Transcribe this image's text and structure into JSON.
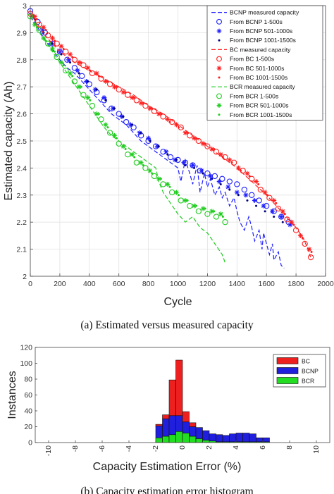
{
  "chart_data": [
    {
      "type": "line",
      "caption": "(a) Estimated versus measured capacity",
      "xlabel": "Cycle",
      "ylabel": "Estimated capacity (Ah)",
      "xlim": [
        0,
        2000
      ],
      "ylim": [
        2,
        3
      ],
      "xticks": [
        0,
        200,
        400,
        600,
        800,
        1000,
        1200,
        1400,
        1600,
        1800,
        2000
      ],
      "yticks": [
        2,
        2.1,
        2.2,
        2.3,
        2.4,
        2.5,
        2.6,
        2.7,
        2.8,
        2.9,
        3
      ],
      "grid": true,
      "legend_position": "top-right",
      "series": [
        {
          "name": "BCNP measured capacity",
          "kind": "line",
          "style": "dashed",
          "color": "#1f1fff",
          "x": [
            0,
            40,
            80,
            120,
            160,
            200,
            250,
            300,
            350,
            400,
            450,
            500,
            550,
            600,
            650,
            700,
            750,
            800,
            850,
            900,
            950,
            1000,
            1020,
            1050,
            1080,
            1100,
            1130,
            1150,
            1180,
            1200,
            1220,
            1250,
            1280,
            1300,
            1320,
            1350,
            1380,
            1400,
            1420,
            1450,
            1480,
            1500,
            1520,
            1550,
            1570,
            1580,
            1600,
            1620,
            1640,
            1650,
            1680,
            1700,
            1720
          ],
          "y": [
            2.96,
            2.93,
            2.89,
            2.86,
            2.83,
            2.8,
            2.77,
            2.75,
            2.72,
            2.69,
            2.66,
            2.63,
            2.6,
            2.58,
            2.56,
            2.53,
            2.5,
            2.48,
            2.46,
            2.44,
            2.42,
            2.4,
            2.35,
            2.43,
            2.38,
            2.34,
            2.41,
            2.31,
            2.38,
            2.33,
            2.36,
            2.3,
            2.33,
            2.29,
            2.31,
            2.26,
            2.29,
            2.24,
            2.2,
            2.17,
            2.22,
            2.18,
            2.13,
            2.17,
            2.1,
            2.16,
            2.12,
            2.08,
            2.12,
            2.06,
            2.09,
            2.04,
            2.03
          ]
        },
        {
          "name": "From BCNP 1-500s",
          "kind": "marker",
          "marker": "circle",
          "color": "#1f1fff",
          "x": [
            0,
            50,
            100,
            150,
            200,
            250,
            300,
            350,
            400,
            450,
            500,
            550,
            600,
            650,
            700,
            750,
            800,
            850,
            900,
            950,
            1000,
            1050,
            1100,
            1150,
            1200,
            1250,
            1300,
            1350,
            1400,
            1450,
            1500,
            1550,
            1600,
            1650,
            1700,
            1750
          ],
          "y": [
            2.98,
            2.94,
            2.9,
            2.86,
            2.83,
            2.8,
            2.77,
            2.74,
            2.71,
            2.68,
            2.65,
            2.62,
            2.6,
            2.57,
            2.55,
            2.52,
            2.5,
            2.48,
            2.46,
            2.44,
            2.43,
            2.42,
            2.41,
            2.39,
            2.38,
            2.37,
            2.36,
            2.35,
            2.34,
            2.32,
            2.3,
            2.28,
            2.26,
            2.24,
            2.22,
            2.2
          ]
        },
        {
          "name": "From BCNP 501-1000s",
          "kind": "marker",
          "marker": "asterisk",
          "color": "#1f1fff",
          "x": [
            20,
            80,
            140,
            200,
            260,
            320,
            380,
            440,
            500,
            560,
            620,
            680,
            740,
            800,
            860,
            920,
            980,
            1040,
            1100,
            1160,
            1220,
            1280,
            1340,
            1400,
            1460,
            1520,
            1580,
            1640,
            1700,
            1760
          ],
          "y": [
            2.96,
            2.91,
            2.86,
            2.83,
            2.8,
            2.76,
            2.72,
            2.69,
            2.66,
            2.62,
            2.59,
            2.56,
            2.53,
            2.51,
            2.48,
            2.46,
            2.43,
            2.42,
            2.41,
            2.39,
            2.37,
            2.35,
            2.33,
            2.31,
            2.3,
            2.28,
            2.26,
            2.24,
            2.22,
            2.19
          ]
        },
        {
          "name": "From BCNP 1001-1500s",
          "kind": "marker",
          "marker": "dot",
          "color": "#00007a",
          "x": [
            30,
            90,
            150,
            210,
            270,
            330,
            390,
            450,
            510,
            570,
            630,
            690,
            750,
            810,
            870,
            930,
            990,
            1050,
            1110,
            1170,
            1230,
            1290,
            1350,
            1410,
            1470,
            1530,
            1590,
            1650,
            1710
          ],
          "y": [
            2.95,
            2.9,
            2.86,
            2.82,
            2.79,
            2.75,
            2.72,
            2.69,
            2.65,
            2.62,
            2.59,
            2.56,
            2.53,
            2.5,
            2.48,
            2.45,
            2.43,
            2.41,
            2.4,
            2.38,
            2.36,
            2.34,
            2.32,
            2.3,
            2.28,
            2.26,
            2.24,
            2.22,
            2.2
          ]
        },
        {
          "name": "BC measured capacity",
          "kind": "line",
          "style": "dashed",
          "color": "#ff1f1f",
          "x": [
            0,
            50,
            100,
            150,
            200,
            300,
            400,
            500,
            600,
            700,
            800,
            900,
            1000,
            1100,
            1200,
            1300,
            1400,
            1500,
            1600,
            1700,
            1800,
            1850,
            1880,
            1900
          ],
          "y": [
            2.97,
            2.93,
            2.89,
            2.86,
            2.83,
            2.79,
            2.76,
            2.73,
            2.7,
            2.67,
            2.63,
            2.6,
            2.56,
            2.52,
            2.48,
            2.44,
            2.4,
            2.35,
            2.3,
            2.24,
            2.18,
            2.14,
            2.1,
            2.07
          ]
        },
        {
          "name": "From BC 1-500s",
          "kind": "marker",
          "marker": "circle",
          "color": "#ff1f1f",
          "x": [
            0,
            60,
            120,
            180,
            240,
            300,
            360,
            420,
            480,
            540,
            600,
            660,
            720,
            780,
            840,
            900,
            960,
            1020,
            1080,
            1140,
            1200,
            1260,
            1320,
            1380,
            1440,
            1500,
            1560,
            1620,
            1680,
            1740,
            1800,
            1860,
            1900
          ],
          "y": [
            2.97,
            2.93,
            2.89,
            2.86,
            2.83,
            2.8,
            2.78,
            2.75,
            2.73,
            2.71,
            2.69,
            2.67,
            2.65,
            2.63,
            2.61,
            2.59,
            2.57,
            2.55,
            2.52,
            2.5,
            2.48,
            2.46,
            2.44,
            2.42,
            2.39,
            2.36,
            2.32,
            2.29,
            2.25,
            2.21,
            2.17,
            2.12,
            2.07
          ]
        },
        {
          "name": "From BC 501-1000s",
          "kind": "marker",
          "marker": "asterisk",
          "color": "#ff1f1f",
          "x": [
            30,
            90,
            150,
            210,
            270,
            330,
            390,
            450,
            510,
            570,
            630,
            690,
            750,
            810,
            870,
            930,
            990,
            1050,
            1110,
            1170,
            1230,
            1290,
            1350,
            1410,
            1470,
            1530,
            1590,
            1650,
            1710,
            1770,
            1830,
            1890
          ],
          "y": [
            2.96,
            2.92,
            2.88,
            2.85,
            2.82,
            2.79,
            2.77,
            2.75,
            2.72,
            2.7,
            2.68,
            2.66,
            2.64,
            2.62,
            2.6,
            2.58,
            2.56,
            2.53,
            2.51,
            2.49,
            2.47,
            2.45,
            2.43,
            2.4,
            2.38,
            2.35,
            2.31,
            2.28,
            2.24,
            2.2,
            2.15,
            2.1
          ]
        },
        {
          "name": "From BC 1001-1500s",
          "kind": "marker",
          "marker": "dot",
          "color": "#ff1f1f",
          "x": [
            45,
            105,
            165,
            225,
            285,
            345,
            405,
            465,
            525,
            585,
            645,
            705,
            765,
            825,
            885,
            945,
            1005,
            1065,
            1125,
            1185,
            1245,
            1305,
            1365,
            1425,
            1485,
            1545,
            1605,
            1665,
            1725,
            1785,
            1845,
            1905
          ],
          "y": [
            2.95,
            2.91,
            2.87,
            2.84,
            2.81,
            2.79,
            2.76,
            2.74,
            2.72,
            2.7,
            2.68,
            2.66,
            2.64,
            2.62,
            2.6,
            2.57,
            2.55,
            2.53,
            2.51,
            2.49,
            2.47,
            2.44,
            2.42,
            2.39,
            2.37,
            2.34,
            2.3,
            2.27,
            2.23,
            2.19,
            2.14,
            2.09
          ]
        },
        {
          "name": "BCR measured capacity",
          "kind": "line",
          "style": "dashed",
          "color": "#1fcc1f",
          "x": [
            0,
            50,
            100,
            150,
            200,
            250,
            300,
            350,
            400,
            450,
            500,
            550,
            600,
            650,
            700,
            750,
            800,
            850,
            870,
            900,
            950,
            1000,
            1050,
            1100,
            1150,
            1200,
            1250,
            1300,
            1320
          ],
          "y": [
            2.96,
            2.91,
            2.87,
            2.83,
            2.79,
            2.75,
            2.71,
            2.67,
            2.63,
            2.59,
            2.55,
            2.52,
            2.5,
            2.48,
            2.46,
            2.44,
            2.42,
            2.4,
            2.35,
            2.31,
            2.27,
            2.23,
            2.2,
            2.22,
            2.18,
            2.16,
            2.12,
            2.08,
            2.05
          ]
        },
        {
          "name": "From BCR 1-500s",
          "kind": "marker",
          "marker": "circle",
          "color": "#1fcc1f",
          "x": [
            0,
            60,
            120,
            180,
            240,
            300,
            360,
            420,
            480,
            540,
            600,
            660,
            720,
            780,
            840,
            900,
            960,
            1020,
            1080,
            1140,
            1200,
            1260,
            1320
          ],
          "y": [
            2.96,
            2.91,
            2.86,
            2.81,
            2.76,
            2.72,
            2.67,
            2.63,
            2.58,
            2.53,
            2.49,
            2.45,
            2.42,
            2.4,
            2.37,
            2.34,
            2.31,
            2.28,
            2.26,
            2.24,
            2.23,
            2.22,
            2.2
          ]
        },
        {
          "name": "From BCR 501-1000s",
          "kind": "marker",
          "marker": "asterisk",
          "color": "#1fcc1f",
          "x": [
            30,
            90,
            150,
            210,
            270,
            330,
            390,
            450,
            510,
            570,
            630,
            690,
            750,
            810,
            870,
            930,
            990,
            1050,
            1110,
            1170,
            1230,
            1290
          ],
          "y": [
            2.93,
            2.88,
            2.84,
            2.79,
            2.75,
            2.7,
            2.66,
            2.6,
            2.56,
            2.52,
            2.48,
            2.45,
            2.42,
            2.39,
            2.36,
            2.34,
            2.31,
            2.28,
            2.26,
            2.25,
            2.24,
            2.23
          ]
        },
        {
          "name": "From BCR 1001-1500s",
          "kind": "marker",
          "marker": "dot",
          "color": "#1fcc1f",
          "x": [
            45,
            105,
            165,
            225,
            285,
            345,
            405,
            465,
            525,
            585,
            645,
            705,
            765,
            825,
            885,
            945,
            1005,
            1065,
            1125,
            1185,
            1245,
            1305
          ],
          "y": [
            2.92,
            2.87,
            2.83,
            2.78,
            2.74,
            2.7,
            2.65,
            2.6,
            2.55,
            2.51,
            2.47,
            2.44,
            2.41,
            2.38,
            2.36,
            2.33,
            2.3,
            2.28,
            2.26,
            2.25,
            2.24,
            2.22
          ]
        }
      ]
    },
    {
      "type": "bar",
      "stacked": true,
      "caption": "(b) Capacity estimation error histogram",
      "xlabel": "Capacity Estimation Error (%)",
      "ylabel": "Instances",
      "xlim": [
        -11,
        11
      ],
      "ylim": [
        0,
        120
      ],
      "xticks": [
        -10,
        -8,
        -6,
        -4,
        -2,
        0,
        2,
        4,
        6,
        8,
        10
      ],
      "yticks": [
        0,
        20,
        40,
        60,
        80,
        100,
        120
      ],
      "grid": false,
      "legend_position": "top-right",
      "bin_centers": [
        -1.75,
        -1.25,
        -0.75,
        -0.25,
        0.25,
        0.75,
        1.25,
        1.75,
        2.25,
        2.75,
        3.25,
        3.75,
        4.25,
        4.75,
        5.25,
        5.75,
        6.25
      ],
      "series": [
        {
          "name": "BCR",
          "color": "#22dd22",
          "values": [
            6,
            8,
            10,
            14,
            12,
            8,
            5,
            3,
            2,
            1,
            1,
            1,
            1,
            1,
            1,
            1,
            1
          ]
        },
        {
          "name": "BCNP",
          "color": "#1f1fdd",
          "values": [
            15,
            22,
            24,
            20,
            14,
            12,
            14,
            12,
            9,
            9,
            8,
            10,
            11,
            11,
            10,
            5,
            5
          ]
        },
        {
          "name": "BC",
          "color": "#ee1f1f",
          "values": [
            2,
            5,
            45,
            70,
            13,
            5,
            0,
            0,
            0,
            0,
            0,
            0,
            0,
            0,
            0,
            0,
            0
          ]
        }
      ]
    }
  ]
}
